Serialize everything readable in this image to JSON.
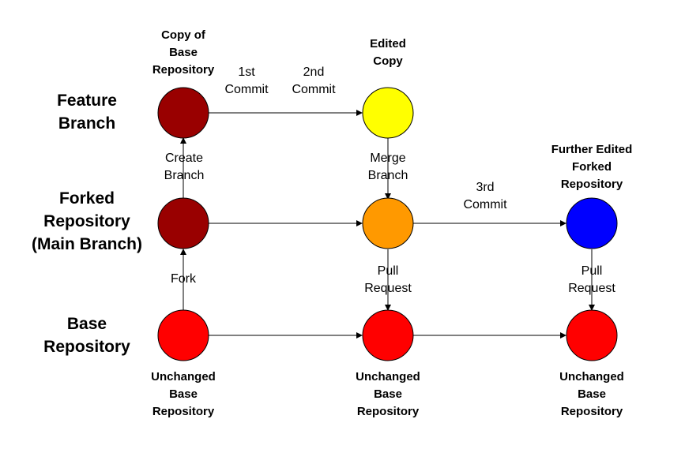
{
  "row_labels": {
    "feature": [
      "Feature",
      "Branch"
    ],
    "forked": [
      "Forked",
      "Repository",
      "(Main Branch)"
    ],
    "base": [
      "Base",
      "Repository"
    ]
  },
  "node_captions": {
    "feature_1": [
      "Copy of",
      "Base",
      "Repository"
    ],
    "feature_2": [
      "Edited",
      "Copy"
    ],
    "forked_3": [
      "Further Edited",
      "Forked",
      "Repository"
    ],
    "base_1": [
      "Unchanged",
      "Base",
      "Repository"
    ],
    "base_2": [
      "Unchanged",
      "Base",
      "Repository"
    ],
    "base_3": [
      "Unchanged",
      "Base",
      "Repository"
    ]
  },
  "edge_labels": {
    "commit1": [
      "1st",
      "Commit"
    ],
    "commit2": [
      "2nd",
      "Commit"
    ],
    "create_branch": [
      "Create",
      "Branch"
    ],
    "merge_branch": [
      "Merge",
      "Branch"
    ],
    "commit3": [
      "3rd",
      "Commit"
    ],
    "fork": [
      "Fork"
    ],
    "pull_request_1": [
      "Pull",
      "Request"
    ],
    "pull_request_2": [
      "Pull",
      "Request"
    ]
  },
  "colors": {
    "dark_red": "#990000",
    "yellow": "#ffff00",
    "orange": "#ff9900",
    "blue": "#0000ff",
    "red": "#ff0000",
    "stroke": "#000000"
  }
}
